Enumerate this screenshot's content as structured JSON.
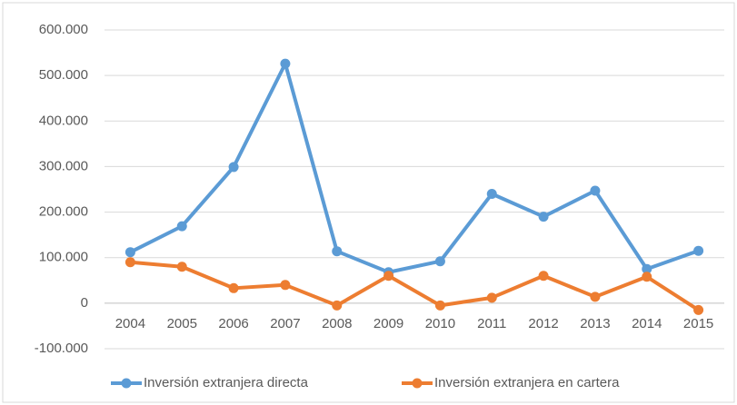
{
  "chart_data": {
    "type": "line",
    "categories": [
      "2004",
      "2005",
      "2006",
      "2007",
      "2008",
      "2009",
      "2010",
      "2011",
      "2012",
      "2013",
      "2014",
      "2015"
    ],
    "series": [
      {
        "name": "Inversión extranjera directa",
        "color": "#5b9bd5",
        "values": [
          112000,
          169000,
          299000,
          526000,
          114000,
          68000,
          92000,
          240000,
          190000,
          247000,
          75000,
          115000
        ]
      },
      {
        "name": "Inversión extranjera en cartera",
        "color": "#ed7d31",
        "values": [
          90000,
          80000,
          33000,
          40000,
          -5000,
          60000,
          -5000,
          12000,
          60000,
          14000,
          58000,
          -15000
        ]
      }
    ],
    "ylim": [
      -100000,
      600000
    ],
    "yticks": [
      {
        "value": -100000,
        "label": "-100.000"
      },
      0,
      {
        "value": 100000,
        "label": "100.000"
      },
      {
        "value": 200000,
        "label": "200.000"
      },
      {
        "value": 300000,
        "label": "300.000"
      },
      {
        "value": 400000,
        "label": "400.000"
      },
      {
        "value": 500000,
        "label": "500.000"
      },
      {
        "value": 600000,
        "label": "600.000"
      }
    ],
    "grid": true,
    "legend": "bottom"
  }
}
